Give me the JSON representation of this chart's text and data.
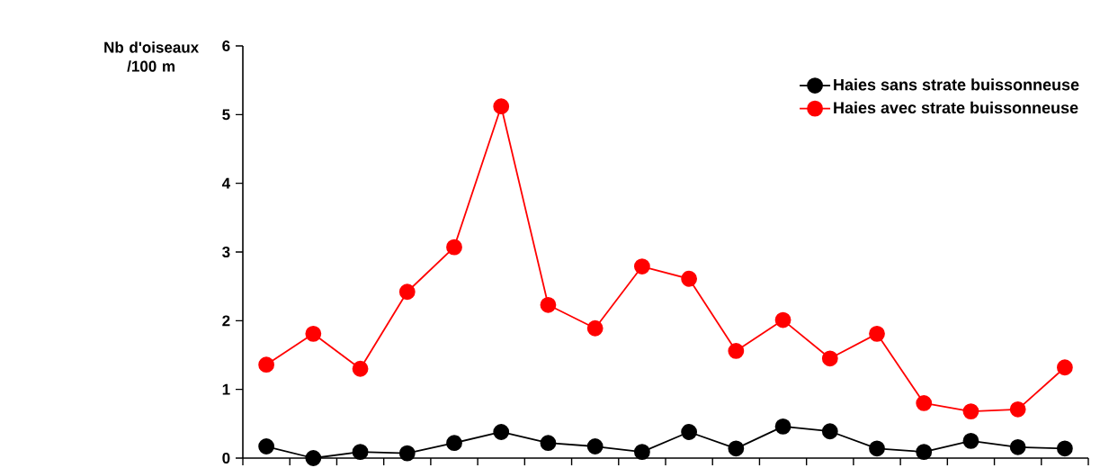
{
  "chart_data": {
    "type": "line",
    "ylabel": "Nb d'oiseaux /100 m",
    "categories": [
      null,
      null,
      null,
      null,
      null,
      null,
      null,
      null,
      null,
      null,
      null,
      null,
      null,
      null,
      null,
      null,
      null,
      null
    ],
    "series": [
      {
        "name": "Haies sans strate buissonneuse",
        "color": "#000000",
        "values": [
          0.17,
          0.0,
          0.09,
          0.07,
          0.22,
          0.38,
          0.22,
          0.17,
          0.09,
          0.38,
          0.14,
          0.46,
          0.39,
          0.14,
          0.09,
          0.25,
          0.16,
          0.14
        ]
      },
      {
        "name": "Haies avec strate buissonneuse",
        "color": "#ff0000",
        "values": [
          1.36,
          1.81,
          1.3,
          2.42,
          3.07,
          5.12,
          2.23,
          1.89,
          2.79,
          2.61,
          1.56,
          2.01,
          1.45,
          1.81,
          0.8,
          0.68,
          0.71,
          1.32
        ]
      }
    ],
    "ylim": [
      0,
      6
    ],
    "yticks": [
      0,
      1,
      2,
      3,
      4,
      5,
      6
    ],
    "grid": false,
    "legend": "top right",
    "marker": "circle",
    "line_style": "solid"
  }
}
